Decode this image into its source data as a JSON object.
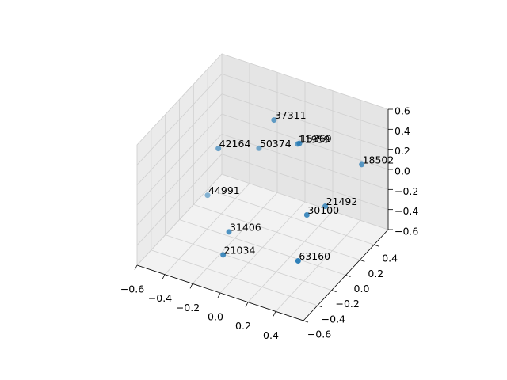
{
  "chart_data": {
    "type": "scatter3d",
    "x": [
      -0.02,
      0.1,
      0.24,
      -0.23,
      -0.37,
      0.46,
      -0.55,
      0.35,
      0.37,
      -0.09,
      -0.03,
      0.46
    ],
    "y": [
      0.2,
      0.3,
      0.05,
      0.4,
      0.1,
      0.5,
      0.3,
      0.2,
      -0.1,
      -0.3,
      -0.5,
      -0.4
    ],
    "z": [
      0.51,
      0.25,
      0.51,
      -0.02,
      0.14,
      0.06,
      -0.56,
      -0.18,
      -0.03,
      -0.26,
      -0.31,
      -0.22
    ],
    "point_labels": [
      "37311",
      "11959",
      "15369",
      "50374",
      "42164",
      "18502",
      "44991",
      "21492",
      "30100",
      "31406",
      "21034",
      "63160"
    ],
    "color": "#1f77b4",
    "xlim": [
      -0.6,
      0.6
    ],
    "ylim": [
      -0.6,
      0.6
    ],
    "zlim": [
      -0.6,
      0.6
    ],
    "xticks": [
      {
        "value": -0.6,
        "label": "−0.6"
      },
      {
        "value": -0.4,
        "label": "−0.4"
      },
      {
        "value": -0.2,
        "label": "−0.2"
      },
      {
        "value": 0,
        "label": "0.0"
      },
      0.2,
      0.4
    ],
    "yticks": [
      {
        "value": -0.6,
        "label": "−0.6"
      },
      {
        "value": -0.4,
        "label": "−0.4"
      },
      {
        "value": -0.2,
        "label": "−0.2"
      },
      {
        "value": 0,
        "label": "0.0"
      },
      0.2,
      0.4
    ],
    "zticks": [
      {
        "value": -0.6,
        "label": "−0.6"
      },
      {
        "value": -0.4,
        "label": "−0.4"
      },
      {
        "value": -0.2,
        "label": "−0.2"
      },
      {
        "value": 0,
        "label": "0.0"
      },
      0.2,
      0.4,
      0.6
    ],
    "grid": true
  }
}
